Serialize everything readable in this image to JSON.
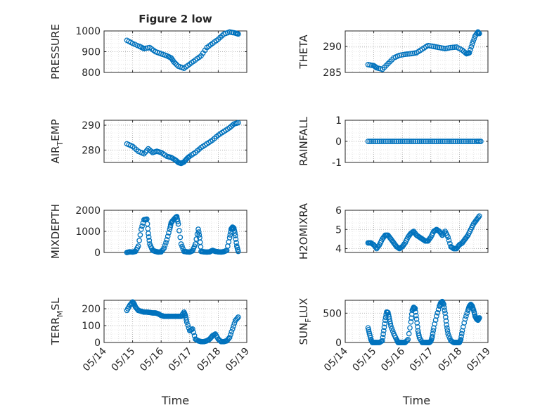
{
  "chart_data": [
    {
      "type": "scatter",
      "title": "Figure 2 low",
      "ylabel": "PRESSURE",
      "ylim": [
        800,
        1000
      ],
      "yticks": [
        "800",
        "900",
        "1000"
      ],
      "xlim_days": [
        14,
        19
      ],
      "xticks": [
        "05/14",
        "05/15",
        "05/16",
        "05/17",
        "05/18",
        "05/19"
      ],
      "xlabel": "",
      "grid": true,
      "color": "#0072bd",
      "series": [
        {
          "x": [
            14.8,
            15.0,
            15.25,
            15.4,
            15.6,
            15.8,
            16.0,
            16.2,
            16.35,
            16.45,
            16.6,
            16.8,
            17.0,
            17.2,
            17.4,
            17.6,
            17.8,
            18.0,
            18.2,
            18.4,
            18.6,
            18.7
          ],
          "y": [
            955,
            940,
            925,
            915,
            920,
            900,
            890,
            880,
            870,
            850,
            830,
            820,
            840,
            860,
            880,
            920,
            940,
            960,
            985,
            995,
            990,
            985
          ]
        }
      ]
    },
    {
      "type": "scatter",
      "ylabel": "THETA",
      "ylim": [
        285,
        293
      ],
      "yticks": [
        "285",
        "290"
      ],
      "xlim_days": [
        14,
        19
      ],
      "xticks": [
        "05/14",
        "05/15",
        "05/16",
        "05/17",
        "05/18",
        "05/19"
      ],
      "grid": true,
      "color": "#0072bd",
      "series": [
        {
          "x": [
            14.8,
            15.0,
            15.1,
            15.3,
            15.5,
            15.7,
            15.9,
            16.1,
            16.3,
            16.5,
            16.7,
            16.9,
            17.1,
            17.3,
            17.5,
            17.7,
            17.9,
            18.1,
            18.25,
            18.35,
            18.45,
            18.55,
            18.65,
            18.7
          ],
          "y": [
            286.5,
            286.3,
            285.9,
            285.6,
            286.7,
            287.8,
            288.3,
            288.5,
            288.6,
            288.8,
            289.5,
            290.2,
            290.0,
            289.8,
            289.6,
            289.8,
            289.9,
            289.3,
            288.6,
            288.8,
            290.5,
            292.0,
            292.8,
            292.5
          ]
        }
      ]
    },
    {
      "type": "scatter",
      "ylabel": "AIR_TEMP",
      "ylim": [
        275,
        292
      ],
      "yticks": [
        "280",
        "290"
      ],
      "xlim_days": [
        14,
        19
      ],
      "xticks": [
        "05/14",
        "05/15",
        "05/16",
        "05/17",
        "05/18",
        "05/19"
      ],
      "grid": true,
      "color": "#0072bd",
      "series": [
        {
          "x": [
            14.8,
            15.0,
            15.2,
            15.4,
            15.55,
            15.7,
            15.85,
            16.0,
            16.2,
            16.35,
            16.5,
            16.6,
            16.7,
            16.8,
            16.9,
            17.0,
            17.2,
            17.4,
            17.6,
            17.8,
            18.0,
            18.2,
            18.4,
            18.55,
            18.7
          ],
          "y": [
            282.5,
            281.5,
            279.5,
            278.5,
            280.5,
            279.0,
            279.5,
            279.0,
            277.5,
            277.0,
            276.0,
            275.0,
            274.6,
            275.2,
            276.5,
            277.5,
            279.0,
            281.0,
            282.5,
            284.0,
            286.0,
            287.5,
            289.0,
            290.5,
            291.0
          ]
        }
      ]
    },
    {
      "type": "scatter",
      "ylabel": "RAINFALL",
      "ylim": [
        -1,
        1
      ],
      "yticks": [
        "-1",
        "0",
        "1"
      ],
      "xlim_days": [
        14,
        19
      ],
      "xticks": [
        "05/14",
        "05/15",
        "05/16",
        "05/17",
        "05/18",
        "05/19"
      ],
      "grid": true,
      "color": "#0072bd",
      "series": [
        {
          "x": [
            14.8,
            15.0,
            15.2,
            15.4,
            15.6,
            15.8,
            16.0,
            16.2,
            16.4,
            16.6,
            16.8,
            17.0,
            17.2,
            17.4,
            17.6,
            17.8,
            18.0,
            18.2,
            18.4,
            18.6,
            18.75
          ],
          "y": [
            0,
            0,
            0,
            0,
            0,
            0,
            0,
            0,
            0,
            0,
            0,
            0,
            0,
            0,
            0,
            0,
            0,
            0,
            0,
            0,
            0
          ]
        }
      ]
    },
    {
      "type": "scatter",
      "ylabel": "MIXDEPTH",
      "ylim": [
        0,
        2000
      ],
      "yticks": [
        "0",
        "1000",
        "2000"
      ],
      "xlim_days": [
        14,
        19
      ],
      "xticks": [
        "05/14",
        "05/15",
        "05/16",
        "05/17",
        "05/18",
        "05/19"
      ],
      "grid": true,
      "color": "#0072bd",
      "series": [
        {
          "x": [
            14.8,
            14.9,
            15.0,
            15.1,
            15.2,
            15.3,
            15.4,
            15.5,
            15.55,
            15.6,
            15.7,
            15.8,
            15.9,
            16.0,
            16.1,
            16.2,
            16.3,
            16.35,
            16.4,
            16.5,
            16.55,
            16.6,
            16.7,
            16.8,
            16.9,
            17.0,
            17.1,
            17.2,
            17.3,
            17.35,
            17.4,
            17.5,
            17.6,
            17.7,
            17.8,
            17.9,
            18.0,
            18.1,
            18.2,
            18.3,
            18.4,
            18.45,
            18.5,
            18.55,
            18.6,
            18.65,
            18.7
          ],
          "y": [
            0,
            30,
            20,
            50,
            300,
            1100,
            1550,
            1580,
            900,
            400,
            100,
            50,
            20,
            30,
            200,
            600,
            1100,
            1400,
            1500,
            1650,
            1700,
            1350,
            400,
            50,
            30,
            20,
            80,
            400,
            1100,
            700,
            50,
            30,
            20,
            30,
            100,
            50,
            30,
            20,
            40,
            100,
            700,
            1100,
            1200,
            1150,
            800,
            300,
            50
          ]
        }
      ]
    },
    {
      "type": "scatter",
      "ylabel": "H2OMIXRA",
      "ylim": [
        3.8,
        6
      ],
      "yticks": [
        "4",
        "5",
        "6"
      ],
      "xlim_days": [
        14,
        19
      ],
      "xticks": [
        "05/14",
        "05/15",
        "05/16",
        "05/17",
        "05/18",
        "05/19"
      ],
      "grid": true,
      "color": "#0072bd",
      "series": [
        {
          "x": [
            14.8,
            14.9,
            15.0,
            15.1,
            15.2,
            15.3,
            15.4,
            15.5,
            15.6,
            15.7,
            15.8,
            15.9,
            16.0,
            16.1,
            16.2,
            16.3,
            16.4,
            16.5,
            16.6,
            16.7,
            16.8,
            16.9,
            17.0,
            17.1,
            17.2,
            17.3,
            17.4,
            17.5,
            17.6,
            17.7,
            17.8,
            17.9,
            18.0,
            18.1,
            18.2,
            18.3,
            18.4,
            18.5,
            18.6,
            18.7
          ],
          "y": [
            4.3,
            4.3,
            4.2,
            4.0,
            4.2,
            4.5,
            4.7,
            4.7,
            4.5,
            4.3,
            4.1,
            4.0,
            4.1,
            4.3,
            4.6,
            4.8,
            4.9,
            4.7,
            4.6,
            4.5,
            4.4,
            4.4,
            4.6,
            4.9,
            5.0,
            4.9,
            4.7,
            4.9,
            4.6,
            4.1,
            4.0,
            4.0,
            4.2,
            4.3,
            4.5,
            4.7,
            5.0,
            5.3,
            5.5,
            5.7
          ]
        }
      ]
    },
    {
      "type": "scatter",
      "ylabel": "TERR_MSL",
      "ylim": [
        0,
        250
      ],
      "yticks": [
        "0",
        "100",
        "200"
      ],
      "xlim_days": [
        14,
        19
      ],
      "xticks": [
        "05/14",
        "05/15",
        "05/16",
        "05/17",
        "05/18",
        "05/19"
      ],
      "xlabel": "Time",
      "grid": true,
      "color": "#0072bd",
      "series": [
        {
          "x": [
            14.8,
            14.9,
            15.0,
            15.05,
            15.1,
            15.2,
            15.3,
            15.4,
            15.5,
            15.6,
            15.7,
            15.8,
            15.9,
            16.0,
            16.1,
            16.2,
            16.3,
            16.4,
            16.5,
            16.6,
            16.7,
            16.8,
            16.85,
            16.9,
            17.0,
            17.1,
            17.2,
            17.3,
            17.4,
            17.5,
            17.6,
            17.7,
            17.8,
            17.9,
            18.0,
            18.1,
            18.2,
            18.3,
            18.4,
            18.5,
            18.6,
            18.7
          ],
          "y": [
            190,
            220,
            240,
            230,
            210,
            190,
            185,
            180,
            180,
            178,
            175,
            175,
            170,
            160,
            155,
            155,
            155,
            155,
            155,
            155,
            155,
            180,
            160,
            120,
            70,
            80,
            20,
            10,
            5,
            5,
            10,
            20,
            40,
            50,
            20,
            5,
            5,
            10,
            30,
            80,
            130,
            150
          ]
        }
      ]
    },
    {
      "type": "scatter",
      "ylabel": "SUN_FLUX",
      "ylim": [
        0,
        720
      ],
      "yticks": [
        "0",
        "500"
      ],
      "xlim_days": [
        14,
        19
      ],
      "xticks": [
        "05/14",
        "05/15",
        "05/16",
        "05/17",
        "05/18",
        "05/19"
      ],
      "xlabel": "Time",
      "grid": true,
      "color": "#0072bd",
      "series": [
        {
          "x": [
            14.8,
            14.85,
            14.9,
            14.95,
            15.0,
            15.05,
            15.1,
            15.2,
            15.3,
            15.35,
            15.4,
            15.45,
            15.5,
            15.55,
            15.6,
            15.7,
            15.8,
            15.85,
            15.9,
            15.95,
            16.0,
            16.05,
            16.1,
            16.2,
            16.3,
            16.35,
            16.4,
            16.45,
            16.5,
            16.55,
            16.6,
            16.7,
            16.8,
            16.85,
            16.9,
            16.95,
            17.0,
            17.05,
            17.1,
            17.2,
            17.3,
            17.35,
            17.4,
            17.45,
            17.5,
            17.55,
            17.6,
            17.7,
            17.8,
            17.85,
            17.9,
            17.95,
            18.0,
            18.05,
            18.1,
            18.2,
            18.3,
            18.35,
            18.4,
            18.45,
            18.5,
            18.55,
            18.6,
            18.65,
            18.7
          ],
          "y": [
            250,
            150,
            50,
            0,
            0,
            0,
            0,
            0,
            30,
            200,
            380,
            520,
            510,
            400,
            280,
            150,
            50,
            0,
            0,
            0,
            0,
            0,
            0,
            50,
            350,
            550,
            600,
            580,
            400,
            200,
            80,
            0,
            0,
            0,
            0,
            0,
            20,
            100,
            250,
            450,
            620,
            680,
            700,
            650,
            500,
            300,
            150,
            30,
            0,
            0,
            0,
            0,
            0,
            50,
            200,
            400,
            550,
            620,
            650,
            620,
            550,
            450,
            400,
            380,
            420
          ]
        }
      ]
    }
  ]
}
